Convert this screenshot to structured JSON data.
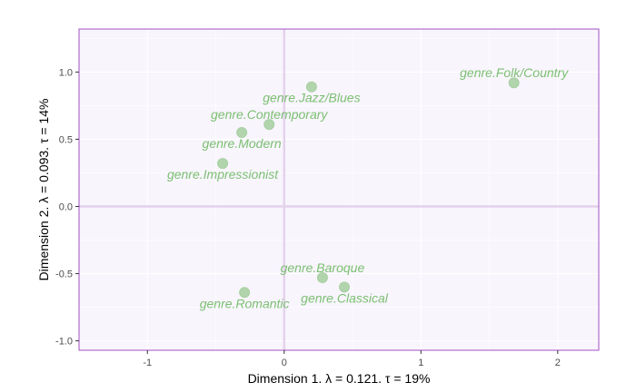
{
  "chart_data": {
    "type": "scatter",
    "xlabel": "Dimension 1.   λ = 0.121.  τ = 19%",
    "ylabel": "Dimension 2.   λ = 0.093.  τ = 14%",
    "xlim": [
      -1.5,
      2.3
    ],
    "ylim": [
      -1.07,
      1.32
    ],
    "x_ticks": [
      -1,
      0,
      1,
      2
    ],
    "y_ticks": [
      -1.0,
      -0.5,
      0.0,
      0.5,
      1.0
    ],
    "x_tick_labels": [
      "-1",
      "0",
      "1",
      "2"
    ],
    "y_tick_labels": [
      "-1.0",
      "-0.5",
      "0.0",
      "0.5",
      "1.0"
    ],
    "grid": true,
    "points": [
      {
        "label": "genre.Folk/Country",
        "x": 1.68,
        "y": 0.92,
        "label_pos": "above"
      },
      {
        "label": "genre.Jazz/Blues",
        "x": 0.2,
        "y": 0.89,
        "label_pos": "below"
      },
      {
        "label": "genre.Contemporary",
        "x": -0.11,
        "y": 0.61,
        "label_pos": "above"
      },
      {
        "label": "genre.Modern",
        "x": -0.31,
        "y": 0.55,
        "label_pos": "below"
      },
      {
        "label": "genre.Impressionist",
        "x": -0.45,
        "y": 0.32,
        "label_pos": "below"
      },
      {
        "label": "genre.Baroque",
        "x": 0.28,
        "y": -0.53,
        "label_pos": "above"
      },
      {
        "label": "genre.Classical",
        "x": 0.44,
        "y": -0.6,
        "label_pos": "below"
      },
      {
        "label": "genre.Romantic",
        "x": -0.29,
        "y": -0.64,
        "label_pos": "below"
      }
    ],
    "colors": {
      "points": "#a9d0a3",
      "labels": "#7cbf72",
      "panel_bg": "#f8f5fd",
      "panel_border": "#a24fc2",
      "zero_lines": "#e4d2ec",
      "grid": "#ffffff"
    }
  }
}
